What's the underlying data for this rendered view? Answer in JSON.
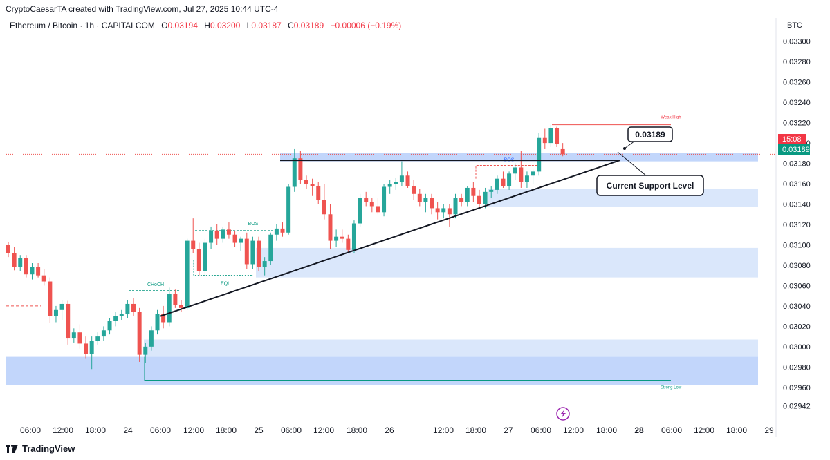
{
  "header": {
    "created_text": "CryptoCaesarTA created with TradingView.com, Jul 27, 2025 10:44 UTC-4"
  },
  "symbol": {
    "name": "Ethereum / Bitcoin · 1h · CAPITALCOM",
    "open_label": "O",
    "open": "0.03194",
    "high_label": "H",
    "high": "0.03200",
    "low_label": "L",
    "low": "0.03187",
    "close_label": "C",
    "close": "0.03189",
    "change": "−0.00006 (−0.19%)"
  },
  "price_axis": {
    "currency": "BTC",
    "countdown": "15:08",
    "current_price": "0.03189"
  },
  "footer": {
    "brand": "TradingView"
  },
  "colors": {
    "up": "#26a69a",
    "down": "#ef5350",
    "zone_light": "#d6e4fb",
    "zone_strong": "#b7cffa",
    "label_green": "#089981",
    "label_red": "#f23645"
  },
  "chart_data": {
    "type": "candlestick",
    "ylim": [
      0.0293,
      0.0331
    ],
    "y_ticks": [
      "0.03300",
      "0.03280",
      "0.03260",
      "0.03240",
      "0.03220",
      "0.03200",
      "0.03180",
      "0.03160",
      "0.03140",
      "0.03120",
      "0.03100",
      "0.03080",
      "0.03060",
      "0.03040",
      "0.03020",
      "0.03000",
      "0.02980",
      "0.02960",
      "0.02942"
    ],
    "x_ticks": [
      "06:00",
      "12:00",
      "18:00",
      "24",
      "06:00",
      "12:00",
      "18:00",
      "25",
      "06:00",
      "12:00",
      "18:00",
      "26",
      "12:00",
      "18:00",
      "27",
      "06:00",
      "12:00",
      "18:00",
      "28",
      "06:00",
      "12:00",
      "18:00",
      "29"
    ],
    "x_tick_bold": [
      "28"
    ],
    "candles": [
      [
        0.031,
        0.03103,
        0.03088,
        0.03092
      ],
      [
        0.03092,
        0.03098,
        0.03075,
        0.03078
      ],
      [
        0.03078,
        0.0309,
        0.03074,
        0.03087
      ],
      [
        0.03087,
        0.0309,
        0.03068,
        0.03071
      ],
      [
        0.03071,
        0.03082,
        0.03066,
        0.03078
      ],
      [
        0.03078,
        0.03082,
        0.03068,
        0.0307
      ],
      [
        0.0307,
        0.03076,
        0.0306,
        0.03064
      ],
      [
        0.03064,
        0.03068,
        0.03023,
        0.0303
      ],
      [
        0.0303,
        0.0304,
        0.03024,
        0.03036
      ],
      [
        0.03036,
        0.03046,
        0.03026,
        0.03042
      ],
      [
        0.03042,
        0.03045,
        0.03002,
        0.03008
      ],
      [
        0.03008,
        0.03018,
        0.03004,
        0.03014
      ],
      [
        0.03014,
        0.03022,
        0.02998,
        0.03003
      ],
      [
        0.03003,
        0.0301,
        0.02988,
        0.02993
      ],
      [
        0.02993,
        0.0301,
        0.02978,
        0.03006
      ],
      [
        0.03006,
        0.03014,
        0.03002,
        0.0301
      ],
      [
        0.0301,
        0.0302,
        0.03006,
        0.03016
      ],
      [
        0.03016,
        0.03028,
        0.03012,
        0.03025
      ],
      [
        0.03025,
        0.03034,
        0.0302,
        0.0303
      ],
      [
        0.0303,
        0.03036,
        0.03026,
        0.03032
      ],
      [
        0.03032,
        0.03046,
        0.03028,
        0.03042
      ],
      [
        0.03042,
        0.03048,
        0.0303,
        0.03034
      ],
      [
        0.03034,
        0.03038,
        0.02985,
        0.02992
      ],
      [
        0.02992,
        0.03004,
        0.02984,
        0.03
      ],
      [
        0.03,
        0.0302,
        0.02996,
        0.03016
      ],
      [
        0.03016,
        0.03036,
        0.03012,
        0.03032
      ],
      [
        0.03032,
        0.0304,
        0.03018,
        0.03024
      ],
      [
        0.03024,
        0.03058,
        0.0302,
        0.03052
      ],
      [
        0.03052,
        0.03056,
        0.03038,
        0.03041
      ],
      [
        0.03041,
        0.03046,
        0.03034,
        0.03038
      ],
      [
        0.03038,
        0.03106,
        0.03036,
        0.03104
      ],
      [
        0.03104,
        0.03126,
        0.03092,
        0.03096
      ],
      [
        0.03096,
        0.03102,
        0.0307,
        0.03074
      ],
      [
        0.03074,
        0.03106,
        0.0307,
        0.03102
      ],
      [
        0.03102,
        0.03118,
        0.03096,
        0.03114
      ],
      [
        0.03114,
        0.0312,
        0.031,
        0.03106
      ],
      [
        0.03106,
        0.03118,
        0.03102,
        0.03115
      ],
      [
        0.03115,
        0.03122,
        0.03106,
        0.0311
      ],
      [
        0.0311,
        0.03114,
        0.03098,
        0.03102
      ],
      [
        0.03102,
        0.03108,
        0.03094,
        0.03106
      ],
      [
        0.03106,
        0.03112,
        0.03076,
        0.03081
      ],
      [
        0.03081,
        0.03108,
        0.03076,
        0.03104
      ],
      [
        0.03104,
        0.03108,
        0.03074,
        0.03078
      ],
      [
        0.03078,
        0.03088,
        0.0307,
        0.03084
      ],
      [
        0.03084,
        0.03112,
        0.0308,
        0.0311
      ],
      [
        0.0311,
        0.0312,
        0.03104,
        0.03116
      ],
      [
        0.03116,
        0.03122,
        0.03108,
        0.03112
      ],
      [
        0.03112,
        0.0316,
        0.0311,
        0.03157
      ],
      [
        0.03157,
        0.03194,
        0.03152,
        0.03185
      ],
      [
        0.03185,
        0.03192,
        0.0316,
        0.03164
      ],
      [
        0.03164,
        0.03168,
        0.03155,
        0.0316
      ],
      [
        0.0316,
        0.03165,
        0.03148,
        0.03158
      ],
      [
        0.03158,
        0.03162,
        0.0314,
        0.03144
      ],
      [
        0.03144,
        0.0316,
        0.03125,
        0.0313
      ],
      [
        0.0313,
        0.0314,
        0.03096,
        0.03104
      ],
      [
        0.03104,
        0.03115,
        0.03098,
        0.03108
      ],
      [
        0.03108,
        0.03115,
        0.03102,
        0.03106
      ],
      [
        0.03106,
        0.0311,
        0.03092,
        0.03095
      ],
      [
        0.03095,
        0.03124,
        0.03092,
        0.03121
      ],
      [
        0.03121,
        0.0315,
        0.03118,
        0.03146
      ],
      [
        0.03146,
        0.03152,
        0.03138,
        0.03142
      ],
      [
        0.03142,
        0.03146,
        0.03132,
        0.03138
      ],
      [
        0.03138,
        0.03146,
        0.0313,
        0.03132
      ],
      [
        0.03132,
        0.0316,
        0.03128,
        0.03157
      ],
      [
        0.03157,
        0.03164,
        0.0315,
        0.0316
      ],
      [
        0.0316,
        0.03166,
        0.03154,
        0.03162
      ],
      [
        0.03162,
        0.03182,
        0.03158,
        0.03168
      ],
      [
        0.03168,
        0.03172,
        0.03156,
        0.03158
      ],
      [
        0.03158,
        0.03164,
        0.03144,
        0.0315
      ],
      [
        0.0315,
        0.03155,
        0.03138,
        0.03142
      ],
      [
        0.03142,
        0.0315,
        0.03132,
        0.03146
      ],
      [
        0.03146,
        0.0315,
        0.0313,
        0.03136
      ],
      [
        0.03136,
        0.03142,
        0.03125,
        0.03132
      ],
      [
        0.03132,
        0.0314,
        0.03126,
        0.03136
      ],
      [
        0.03136,
        0.0314,
        0.03118,
        0.0313
      ],
      [
        0.0313,
        0.0315,
        0.03126,
        0.03146
      ],
      [
        0.03146,
        0.0315,
        0.03138,
        0.03142
      ],
      [
        0.03142,
        0.03158,
        0.03138,
        0.03156
      ],
      [
        0.03156,
        0.03162,
        0.03142,
        0.03148
      ],
      [
        0.03148,
        0.03154,
        0.03136,
        0.0314
      ],
      [
        0.0314,
        0.03156,
        0.03136,
        0.03152
      ],
      [
        0.03152,
        0.03158,
        0.03146,
        0.03154
      ],
      [
        0.03154,
        0.03168,
        0.0315,
        0.03165
      ],
      [
        0.03165,
        0.03172,
        0.03156,
        0.03158
      ],
      [
        0.03158,
        0.03172,
        0.03154,
        0.0317
      ],
      [
        0.0317,
        0.0318,
        0.03164,
        0.03176
      ],
      [
        0.03176,
        0.03192,
        0.03156,
        0.03162
      ],
      [
        0.03162,
        0.03172,
        0.03156,
        0.03168
      ],
      [
        0.03168,
        0.03174,
        0.0316,
        0.03172
      ],
      [
        0.03172,
        0.0321,
        0.03168,
        0.03205
      ],
      [
        0.03205,
        0.03214,
        0.03194,
        0.032
      ],
      [
        0.032,
        0.03218,
        0.03196,
        0.03215
      ],
      [
        0.03215,
        0.03216,
        0.03196,
        0.03199
      ],
      [
        0.03194,
        0.032,
        0.03187,
        0.03189
      ]
    ],
    "zones": [
      {
        "low": 0.03182,
        "high": 0.0319,
        "style": "strong",
        "x_from": "48",
        "x_to": "end"
      },
      {
        "low": 0.03137,
        "high": 0.03155,
        "style": "light",
        "x_from": "79",
        "x_to": "end"
      },
      {
        "low": 0.03068,
        "high": 0.03097,
        "style": "light",
        "x_from": "60",
        "x_to": "end"
      },
      {
        "low": 0.0299,
        "high": 0.03007,
        "style": "light",
        "x_from": "24",
        "x_to": "end"
      },
      {
        "low": 0.02962,
        "high": 0.0299,
        "style": "strong",
        "x_from": "0",
        "x_to": "end"
      }
    ],
    "support_line_value": 0.03183,
    "trendline": {
      "from_value": 0.0303,
      "to_value": 0.03183
    },
    "annotations": [
      {
        "text": "CHoCH",
        "color": "green"
      },
      {
        "text": "BOS",
        "color": "green"
      },
      {
        "text": "EQL",
        "color": "green"
      },
      {
        "text": "BOS",
        "color": "blue"
      },
      {
        "text": "Weak High",
        "color": "red"
      },
      {
        "text": "Strong Low",
        "color": "green"
      }
    ],
    "callouts": [
      {
        "text": "0.03189"
      },
      {
        "text": "Current Support Level"
      }
    ]
  }
}
